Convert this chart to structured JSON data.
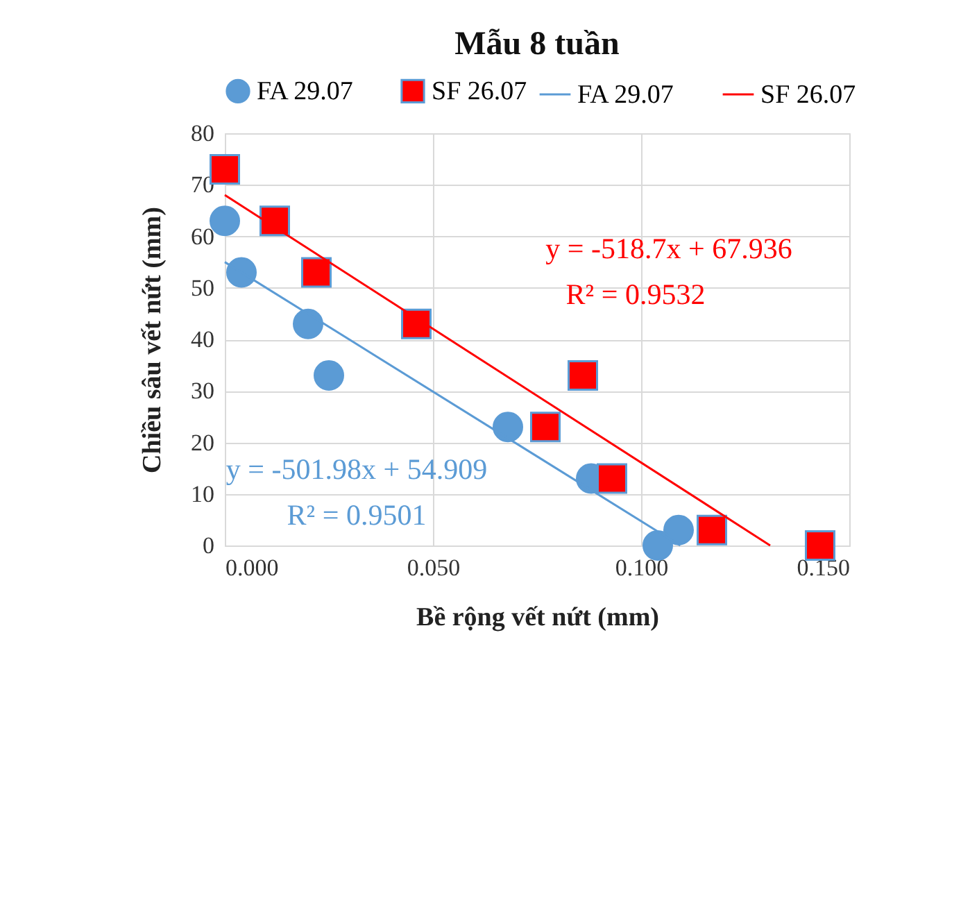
{
  "chart_data": {
    "type": "scatter",
    "title": "Mẫu 8 tuần",
    "xlabel": "Bề rộng vết nứt (mm)",
    "ylabel": "Chiều sâu vết nứt (mm)",
    "xlim": [
      0,
      0.15
    ],
    "xticks": [
      {
        "value": 0,
        "label": "0.000"
      },
      {
        "value": 0.05,
        "label": "0.050"
      },
      {
        "value": 0.1,
        "label": "0.100"
      },
      {
        "value": 0.15,
        "label": "0.150"
      }
    ],
    "ylim": [
      0,
      80
    ],
    "yticks": [
      0,
      10,
      20,
      30,
      40,
      50,
      60,
      70,
      80
    ],
    "grid": true,
    "legend": "top",
    "series": [
      {
        "name": "FA 29.07",
        "type": "scatter",
        "marker": "circle",
        "color": "#5b9bd5",
        "x": [
          0.0,
          0.004,
          0.02,
          0.025,
          0.068,
          0.088,
          0.109,
          0.104
        ],
        "values": [
          63,
          53,
          43,
          33,
          23,
          13,
          3,
          0
        ]
      },
      {
        "name": "SF 26.07",
        "type": "scatter",
        "marker": "square",
        "color": "#ff0000",
        "x": [
          0.0,
          0.012,
          0.022,
          0.046,
          0.086,
          0.077,
          0.093,
          0.117,
          0.143
        ],
        "values": [
          73,
          63,
          53,
          43,
          33,
          23,
          13,
          3,
          0
        ]
      },
      {
        "name": "FA 29.07",
        "type": "line",
        "color": "#5b9bd5",
        "x": [
          0,
          0.1094
        ],
        "values": [
          55,
          0
        ]
      },
      {
        "name": "SF 26.07",
        "type": "line",
        "color": "#ff0000",
        "x": [
          0,
          0.131
        ],
        "values": [
          68,
          0
        ]
      }
    ],
    "annotations": [
      "y = -501.98x + 54.909",
      "R² = 0.9501",
      "y = -518.7x + 67.936",
      "R² = 0.9532"
    ]
  }
}
